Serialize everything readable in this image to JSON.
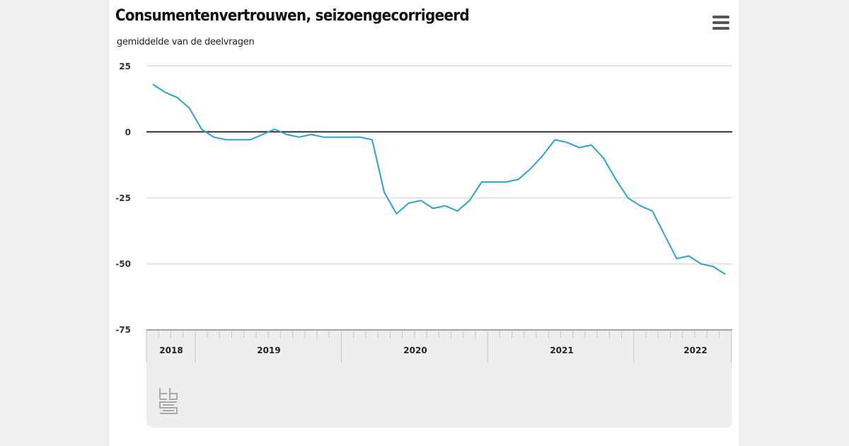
{
  "header": {
    "title": "Consumentenvertrouwen, seizoengecorrigeerd",
    "subtitle": "gemiddelde van de deelvragen",
    "menu_icon": "hamburger-menu-icon"
  },
  "axis": {
    "y_ticks": [
      "25",
      "0",
      "-25",
      "-50",
      "-75"
    ],
    "x_years": [
      "2018",
      "2019",
      "2020",
      "2021",
      "2022"
    ]
  },
  "colors": {
    "line": "#2aa3c9",
    "zero_line": "#333333",
    "grid": "#e4e4e4",
    "axis_bg": "#eeeeee"
  },
  "logo": {
    "label": "cbs"
  },
  "chart_data": {
    "type": "line",
    "title": "Consumentenvertrouwen, seizoengecorrigeerd",
    "subtitle": "gemiddelde van de deelvragen",
    "xlabel": "",
    "ylabel": "",
    "ylim": [
      -75,
      25
    ],
    "yticks": [
      25,
      0,
      -25,
      -50,
      -75
    ],
    "grid": true,
    "legend": "none",
    "x_start": "2018-09",
    "x_end": "2022-08",
    "x_frequency": "monthly",
    "x_tick_labels": [
      "2018",
      "2019",
      "2020",
      "2021",
      "2022"
    ],
    "series": [
      {
        "name": "Consumentenvertrouwen",
        "x": [
          "2018-09",
          "2018-10",
          "2018-11",
          "2018-12",
          "2019-01",
          "2019-02",
          "2019-03",
          "2019-04",
          "2019-05",
          "2019-06",
          "2019-07",
          "2019-08",
          "2019-09",
          "2019-10",
          "2019-11",
          "2019-12",
          "2020-01",
          "2020-02",
          "2020-03",
          "2020-04",
          "2020-05",
          "2020-06",
          "2020-07",
          "2020-08",
          "2020-09",
          "2020-10",
          "2020-11",
          "2020-12",
          "2021-01",
          "2021-02",
          "2021-03",
          "2021-04",
          "2021-05",
          "2021-06",
          "2021-07",
          "2021-08",
          "2021-09",
          "2021-10",
          "2021-11",
          "2021-12",
          "2022-01",
          "2022-02",
          "2022-03",
          "2022-04",
          "2022-05",
          "2022-06",
          "2022-07",
          "2022-08"
        ],
        "values": [
          18,
          15,
          13,
          9,
          1,
          -2,
          -3,
          -3,
          -3,
          -1,
          1,
          -1,
          -2,
          -1,
          -2,
          -2,
          -2,
          -2,
          -3,
          -23,
          -31,
          -27,
          -26,
          -29,
          -28,
          -30,
          -26,
          -19,
          -19,
          -19,
          -18,
          -14,
          -9,
          -3,
          -4,
          -6,
          -5,
          -10,
          -18,
          -25,
          -28,
          -30,
          -39,
          -48,
          -47,
          -50,
          -51,
          -54
        ]
      }
    ]
  }
}
